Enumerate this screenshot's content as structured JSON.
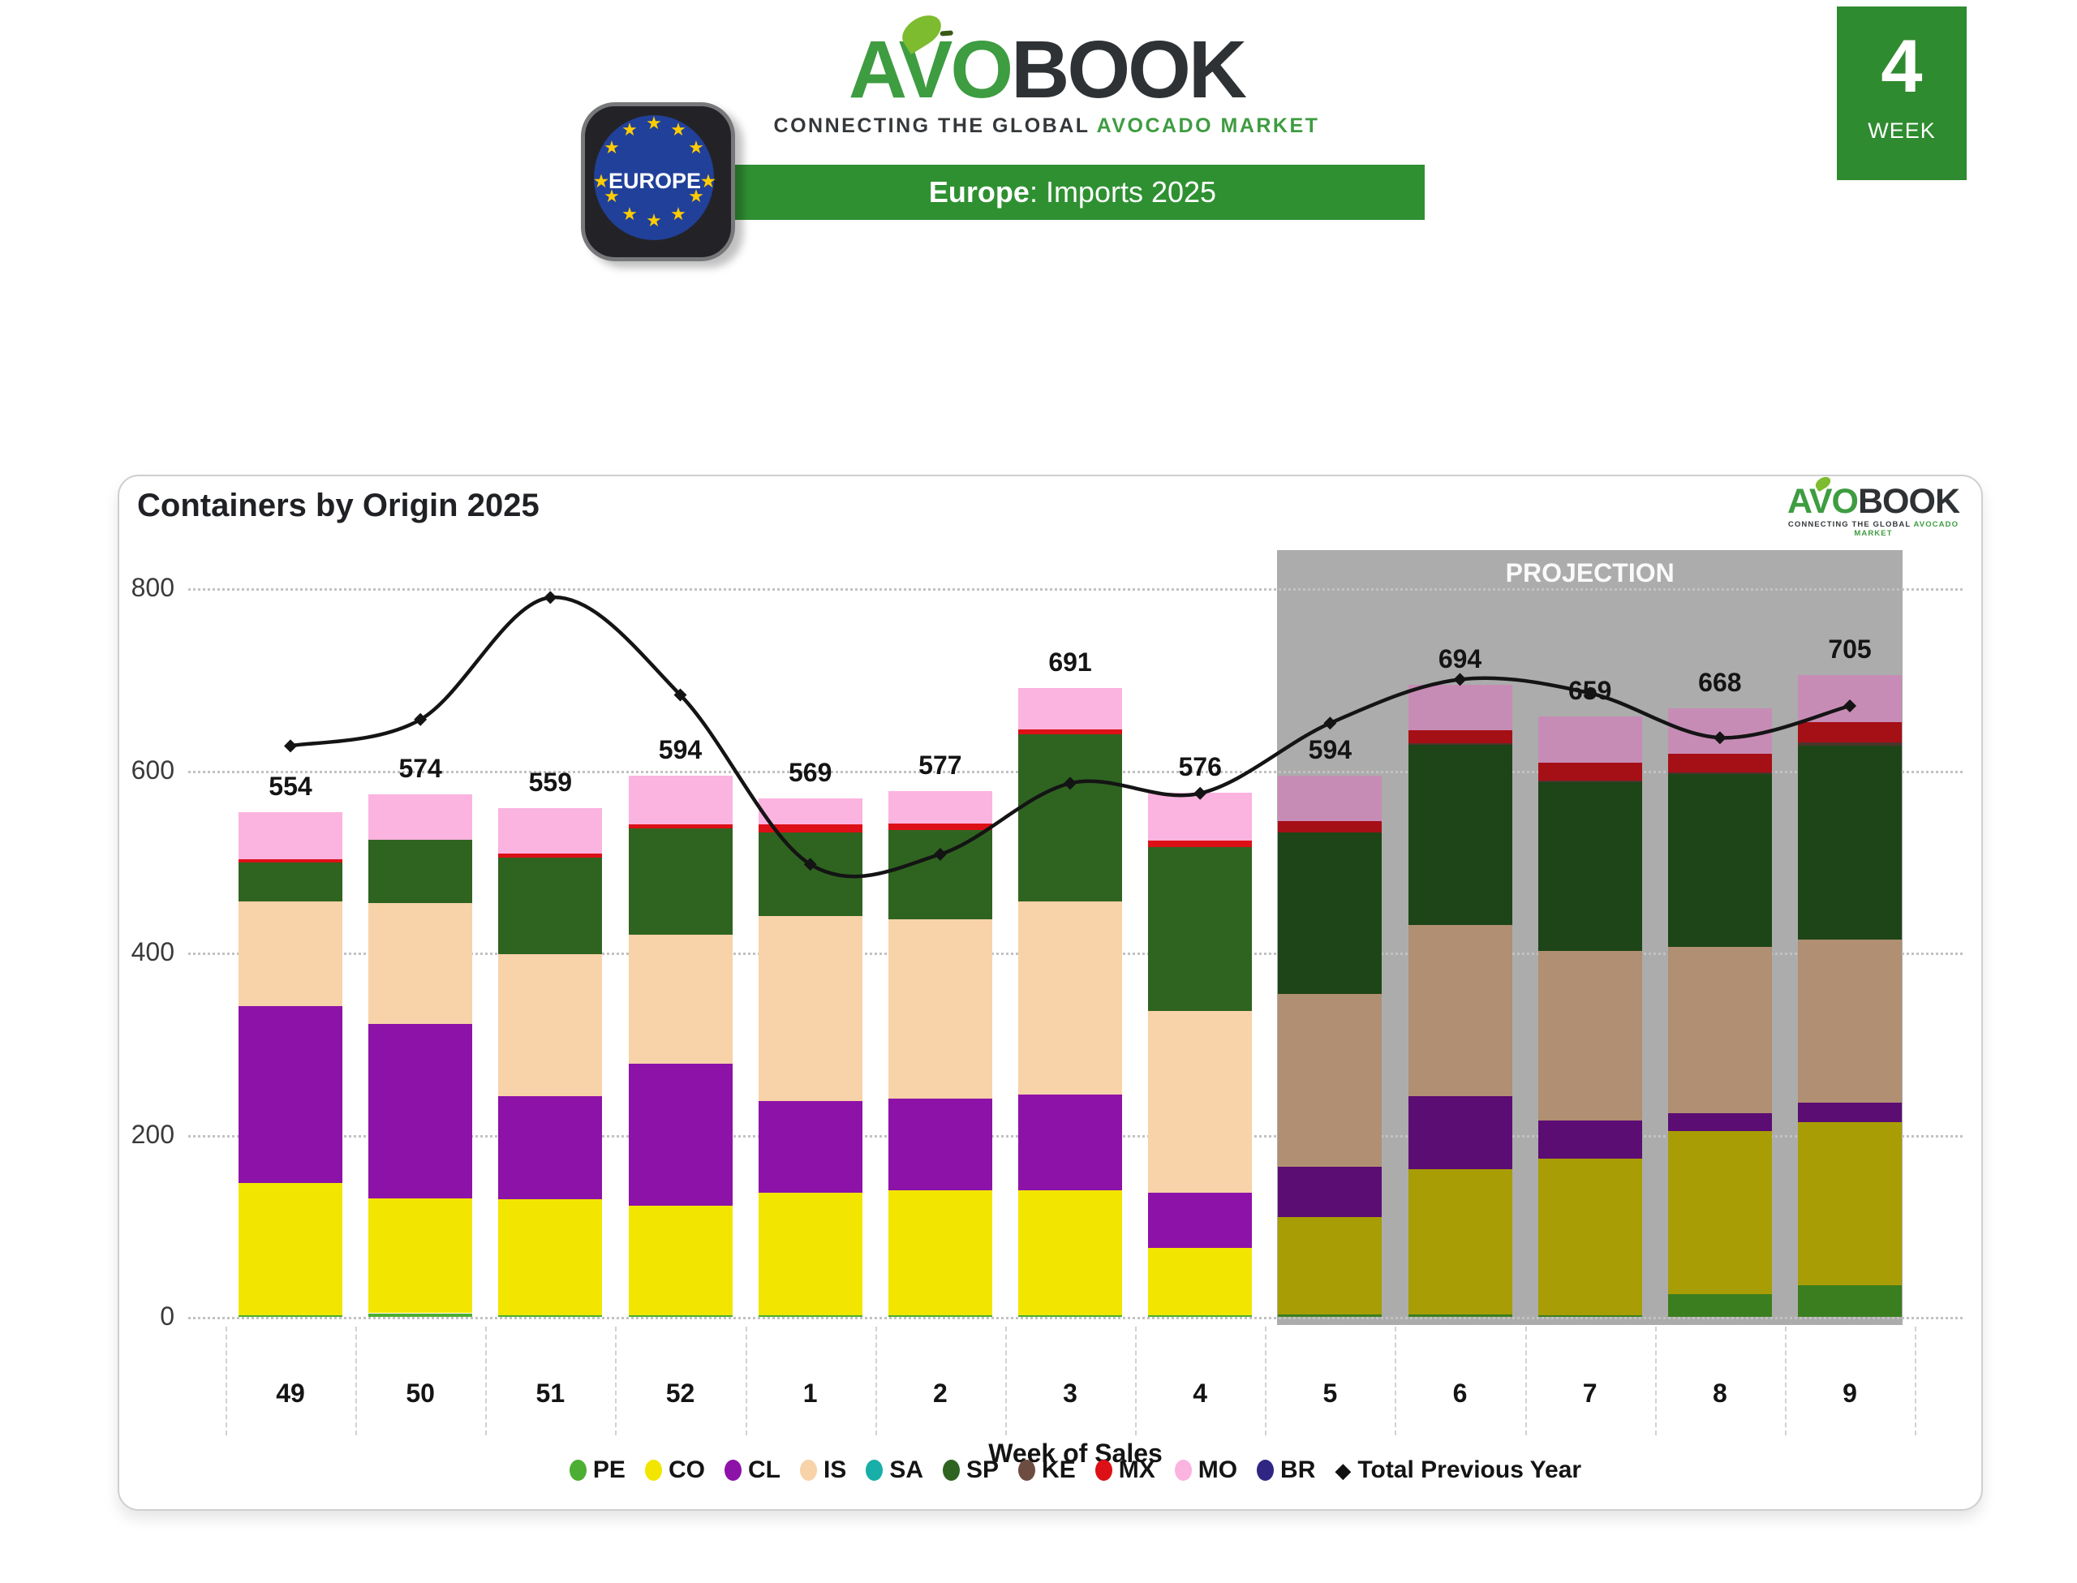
{
  "header": {
    "logo": {
      "avo": "AVO",
      "book": "BOOK",
      "tagline_dark": "CONNECTING THE GLOBAL",
      "tagline_green": "AVOCADO MARKET"
    },
    "banner": {
      "region": "Europe",
      "rest": ": Imports 2025"
    },
    "europe_badge": {
      "label": "EUROPE",
      "star": "★"
    },
    "week_badge": {
      "number": "4",
      "label": "WEEK"
    }
  },
  "card": {
    "title": "Containers by Origin 2025"
  },
  "colors": {
    "brand_green": "#3E9C41",
    "brand_dark": "#2F3234",
    "banner_green": "#2F9032",
    "week_badge_green": "#2F8B2F",
    "eu_blue": "#20409A",
    "star_yellow": "#FFCC00",
    "projection_gray": "#ACACAC",
    "line_black": "#141414"
  },
  "chart_data": {
    "type": "bar",
    "stacked": true,
    "title": "Containers by Origin 2025",
    "xlabel": "Week of Sales",
    "ylabel": "",
    "ylim": [
      0,
      800
    ],
    "yticks": [
      0,
      200,
      400,
      600,
      800
    ],
    "grid": "horizontal-dotted",
    "legend_position": "bottom",
    "categories": [
      "49",
      "50",
      "51",
      "52",
      "1",
      "2",
      "3",
      "4",
      "5",
      "6",
      "7",
      "8",
      "9"
    ],
    "totals": [
      554,
      574,
      559,
      594,
      569,
      577,
      691,
      576,
      594,
      694,
      659,
      668,
      705
    ],
    "projection_start_index": 8,
    "projection_label": "PROJECTION",
    "series": [
      {
        "name": "PE",
        "color": "#4CAE32",
        "projection_color": "#3B7E1F",
        "values": [
          2,
          4,
          2,
          2,
          2,
          2,
          2,
          2,
          3,
          3,
          2,
          25,
          35
        ]
      },
      {
        "name": "CO",
        "color": "#F2E600",
        "projection_color": "#A89D04",
        "values": [
          145,
          126,
          127,
          120,
          134,
          137,
          137,
          74,
          107,
          159,
          172,
          179,
          179
        ]
      },
      {
        "name": "CL",
        "color": "#8D12A8",
        "projection_color": "#5B0D73",
        "values": [
          194,
          192,
          113,
          156,
          101,
          101,
          105,
          60,
          55,
          80,
          42,
          20,
          21
        ]
      },
      {
        "name": "IS",
        "color": "#F8D2A8",
        "projection_color": "#B08F72",
        "values": [
          115,
          132,
          156,
          142,
          203,
          197,
          212,
          200,
          190,
          188,
          186,
          182,
          179
        ]
      },
      {
        "name": "SA",
        "color": "#18AFA8",
        "projection_color": "#18827D",
        "values": [
          0,
          0,
          0,
          0,
          0,
          0,
          0,
          0,
          0,
          0,
          0,
          0,
          0
        ]
      },
      {
        "name": "SP",
        "color": "#2F6420",
        "projection_color": "#1D4517",
        "values": [
          43,
          70,
          106,
          116,
          92,
          98,
          184,
          180,
          177,
          198,
          185,
          190,
          213
        ]
      },
      {
        "name": "KE",
        "color": "#6D4C41",
        "projection_color": "#4C342C",
        "values": [
          0,
          0,
          0,
          0,
          0,
          0,
          0,
          0,
          0,
          2,
          2,
          2,
          4
        ]
      },
      {
        "name": "MX",
        "color": "#DC1016",
        "projection_color": "#A50F16",
        "values": [
          4,
          0,
          5,
          5,
          9,
          7,
          5,
          7,
          12,
          14,
          20,
          20,
          22
        ]
      },
      {
        "name": "MO",
        "color": "#FBB3DF",
        "projection_color": "#C78CB5",
        "values": [
          51,
          50,
          50,
          53,
          28,
          35,
          46,
          53,
          50,
          50,
          50,
          50,
          52
        ]
      },
      {
        "name": "BR",
        "color": "#2F2583",
        "projection_color": "#241C62",
        "values": [
          0,
          0,
          0,
          0,
          0,
          0,
          0,
          0,
          0,
          0,
          0,
          0,
          0
        ]
      }
    ],
    "line": {
      "name": "Total Previous Year",
      "marker": "diamond",
      "color": "#141414",
      "values": [
        627,
        656,
        790,
        683,
        497,
        508,
        586,
        575,
        652,
        700,
        685,
        636,
        671
      ]
    }
  }
}
